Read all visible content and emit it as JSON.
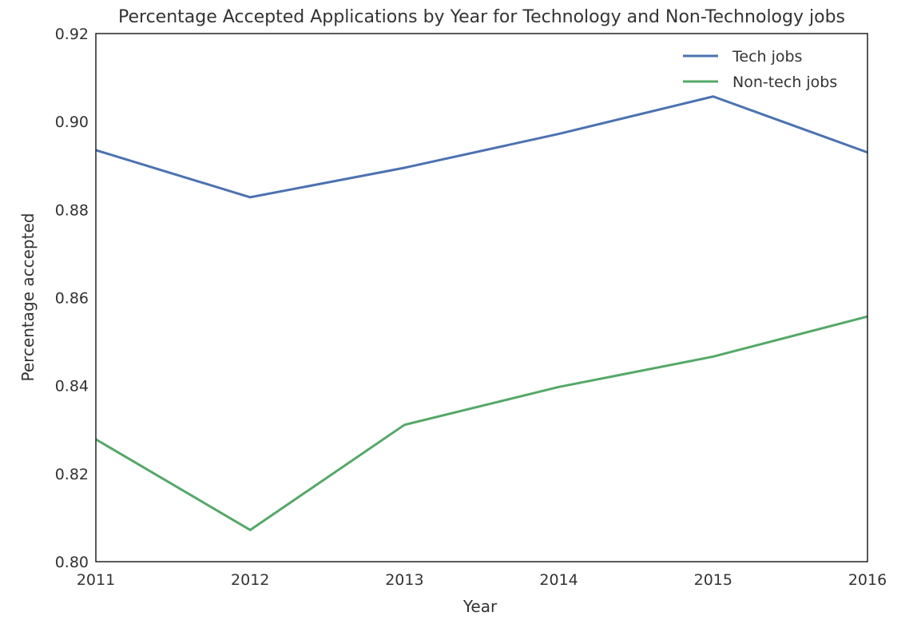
{
  "chart_data": {
    "type": "line",
    "title": "Percentage Accepted Applications by Year for Technology and Non-Technology jobs",
    "xlabel": "Year",
    "ylabel": "Percentage accepted",
    "x": [
      2011,
      2012,
      2013,
      2014,
      2015,
      2016
    ],
    "xlim": [
      2011,
      2016
    ],
    "ylim": [
      0.8,
      0.92
    ],
    "xticks": [
      "2011",
      "2012",
      "2013",
      "2014",
      "2015",
      "2016"
    ],
    "yticks": [
      "0.80",
      "0.82",
      "0.84",
      "0.86",
      "0.88",
      "0.90",
      "0.92"
    ],
    "grid": false,
    "legend_position": "top-right",
    "series": [
      {
        "name": "Tech jobs",
        "color": "#4c72b0",
        "values": [
          0.8935,
          0.8828,
          0.8895,
          0.8972,
          0.9057,
          0.893
        ]
      },
      {
        "name": "Non-tech jobs",
        "color": "#55a868",
        "values": [
          0.8278,
          0.8072,
          0.8311,
          0.8397,
          0.8466,
          0.8557
        ]
      }
    ]
  }
}
